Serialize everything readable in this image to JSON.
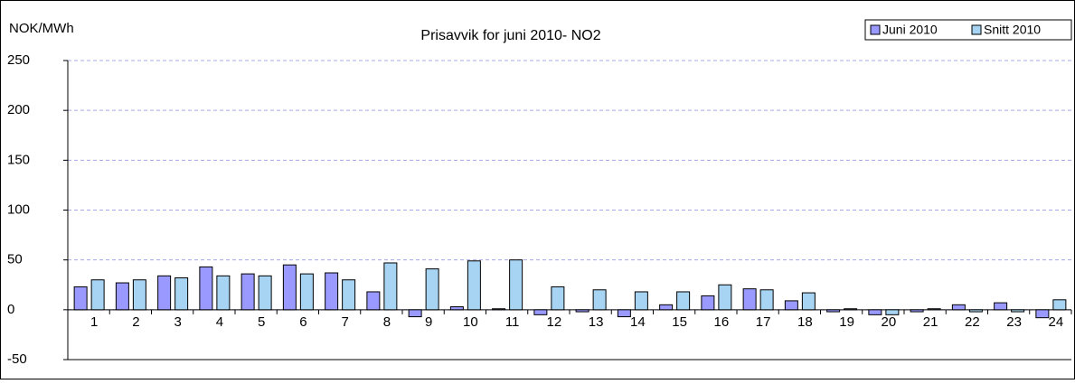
{
  "chart_data": {
    "type": "bar",
    "title": "Prisavvik for  juni 2010- NO2",
    "y_label": "NOK/MWh",
    "categories": [
      "1",
      "2",
      "3",
      "4",
      "5",
      "6",
      "7",
      "8",
      "9",
      "10",
      "11",
      "12",
      "13",
      "14",
      "15",
      "16",
      "17",
      "18",
      "19",
      "20",
      "21",
      "22",
      "23",
      "24"
    ],
    "series": [
      {
        "name": "Juni 2010",
        "color": "#9999ff",
        "values": [
          23,
          27,
          34,
          43,
          36,
          45,
          37,
          18,
          -7,
          3,
          1,
          -5,
          -2,
          -7,
          5,
          14,
          21,
          9,
          -2,
          -5,
          -2,
          5,
          7,
          -8
        ]
      },
      {
        "name": "Snitt 2010",
        "color": "#a6d4f2",
        "values": [
          30,
          30,
          32,
          34,
          34,
          36,
          30,
          47,
          41,
          49,
          50,
          23,
          20,
          18,
          18,
          25,
          20,
          17,
          1,
          -5,
          1,
          -2,
          -2,
          10
        ]
      }
    ],
    "ylim": [
      -50,
      250
    ],
    "yticks": [
      -50,
      0,
      50,
      100,
      150,
      200,
      250
    ],
    "grid": true,
    "legend": "top-right"
  }
}
